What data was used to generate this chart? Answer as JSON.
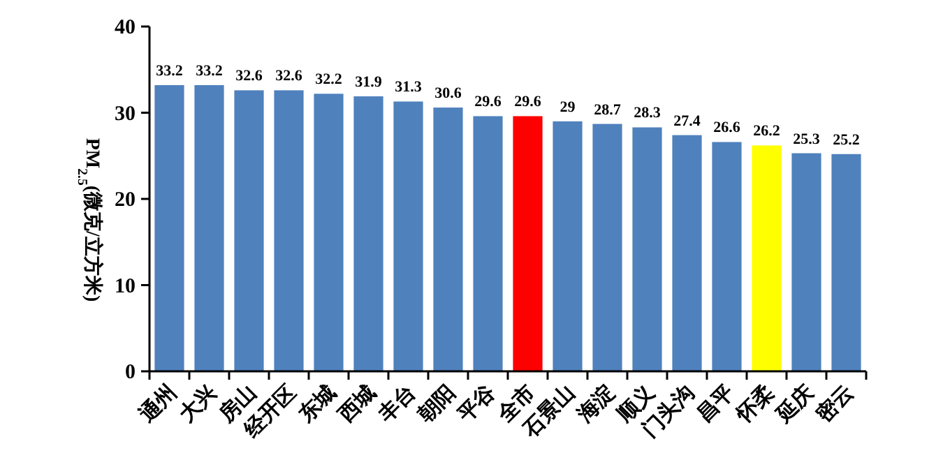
{
  "chart_data": {
    "type": "bar",
    "ylabel": "PM$_{2.5}$(微克/立方米)",
    "categories": [
      "通州",
      "大兴",
      "房山",
      "经开区",
      "东城",
      "西城",
      "丰台",
      "朝阳",
      "平谷",
      "全市",
      "石景山",
      "海淀",
      "顺义",
      "门头沟",
      "昌平",
      "怀柔",
      "延庆",
      "密云"
    ],
    "values": [
      33.2,
      33.2,
      32.6,
      32.6,
      32.2,
      31.9,
      31.3,
      30.6,
      29.6,
      29.6,
      29,
      28.7,
      28.3,
      27.4,
      26.6,
      26.2,
      25.3,
      25.2
    ],
    "colors": [
      "#4f81bd",
      "#4f81bd",
      "#4f81bd",
      "#4f81bd",
      "#4f81bd",
      "#4f81bd",
      "#4f81bd",
      "#4f81bd",
      "#4f81bd",
      "#ff0000",
      "#4f81bd",
      "#4f81bd",
      "#4f81bd",
      "#4f81bd",
      "#4f81bd",
      "#ffff00",
      "#4f81bd",
      "#4f81bd"
    ],
    "ylim": [
      0,
      40
    ],
    "yticks": [
      0,
      10,
      20,
      30,
      40
    ],
    "data_labels": true
  }
}
